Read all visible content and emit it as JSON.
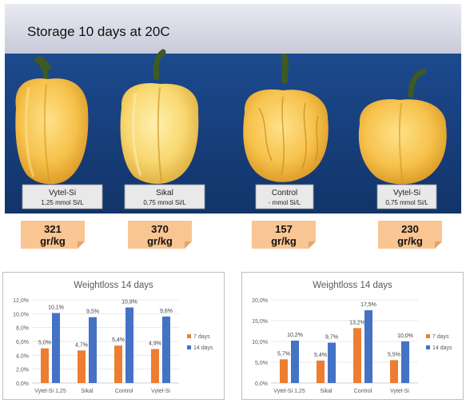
{
  "photo": {
    "title": "Storage 10 days at 20C",
    "colors": {
      "background": "#173e7b",
      "pepper": "#f6c24c",
      "pepper_shade": "#d9961f",
      "stem": "#3f5a22",
      "label_bg": "#e9e9e9"
    },
    "peppers": [
      {
        "name": "Vytel-Si",
        "dose": "1,25 mmol Si/L",
        "weight": "321",
        "unit": "gr/kg"
      },
      {
        "name": "Sikal",
        "dose": "0,75 mmol Si/L",
        "weight": "370",
        "unit": "gr/kg"
      },
      {
        "name": "Control",
        "dose": "- mmol Si/L",
        "weight": "157",
        "unit": "gr/kg"
      },
      {
        "name": "Vytel-Si",
        "dose": "0,75 mmol Si/L",
        "weight": "230",
        "unit": "gr/kg"
      }
    ]
  },
  "chart_data": [
    {
      "type": "bar",
      "title": "Weightloss 14 days",
      "categories": [
        "Vytel-Si 1,25",
        "Sikal",
        "Control",
        "Vytel-Si"
      ],
      "series": [
        {
          "name": "7 days",
          "color": "#ed7d31",
          "values": [
            5.0,
            4.7,
            5.4,
            4.9
          ],
          "labels": [
            "5,0%",
            "4,7%",
            "5,4%",
            "4,9%"
          ]
        },
        {
          "name": "14 days",
          "color": "#4472c4",
          "values": [
            10.1,
            9.5,
            10.9,
            9.6
          ],
          "labels": [
            "10,1%",
            "9,5%",
            "10,9%",
            "9,6%"
          ]
        }
      ],
      "ylim": [
        0,
        12
      ],
      "yticks": [
        0,
        2,
        4,
        6,
        8,
        10,
        12
      ],
      "ytick_labels": [
        "0,0%",
        "2,0%",
        "4,0%",
        "6,0%",
        "8,0%",
        "10,0%",
        "12,0%"
      ],
      "grid": true,
      "legend_position": "right"
    },
    {
      "type": "bar",
      "title": "Weightloss 14 days",
      "categories": [
        "Vytel-Si 1,25",
        "Sikal",
        "Control",
        "Vytel-Si"
      ],
      "series": [
        {
          "name": "7 days",
          "color": "#ed7d31",
          "values": [
            5.7,
            5.4,
            13.2,
            5.5
          ],
          "labels": [
            "5,7%",
            "5,4%",
            "13,2%",
            "5,5%"
          ]
        },
        {
          "name": "14 days",
          "color": "#4472c4",
          "values": [
            10.2,
            9.7,
            17.5,
            10.0
          ],
          "labels": [
            "10,2%",
            "9,7%",
            "17,5%",
            "10,0%"
          ]
        }
      ],
      "ylim": [
        0,
        20
      ],
      "yticks": [
        0,
        5,
        10,
        15,
        20
      ],
      "ytick_labels": [
        "0,0%",
        "5,0%",
        "10,0%",
        "15,0%",
        "20,0%"
      ],
      "grid": true,
      "legend_position": "right"
    }
  ]
}
